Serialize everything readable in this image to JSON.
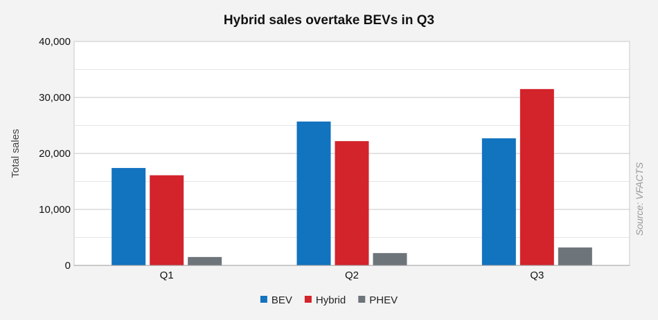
{
  "chart_data": {
    "type": "bar",
    "title": "Hybrid sales overtake BEVs in Q3",
    "ylabel": "Total sales",
    "xlabel": "",
    "categories": [
      "Q1",
      "Q2",
      "Q3"
    ],
    "series": [
      {
        "name": "BEV",
        "color": "#1273bf",
        "values": [
          17400,
          25700,
          22700
        ]
      },
      {
        "name": "Hybrid",
        "color": "#d3232b",
        "values": [
          16100,
          22200,
          31500
        ]
      },
      {
        "name": "PHEV",
        "color": "#6d747a",
        "values": [
          1500,
          2200,
          3200
        ]
      }
    ],
    "ylim": [
      0,
      40000
    ],
    "yticks": [
      0,
      10000,
      20000,
      30000,
      40000
    ],
    "ytick_labels": [
      "0",
      "10,000",
      "20,000",
      "30,000",
      "40,000"
    ],
    "grid": true,
    "legend": "bottom-center",
    "source": "Source: VFACTS"
  }
}
